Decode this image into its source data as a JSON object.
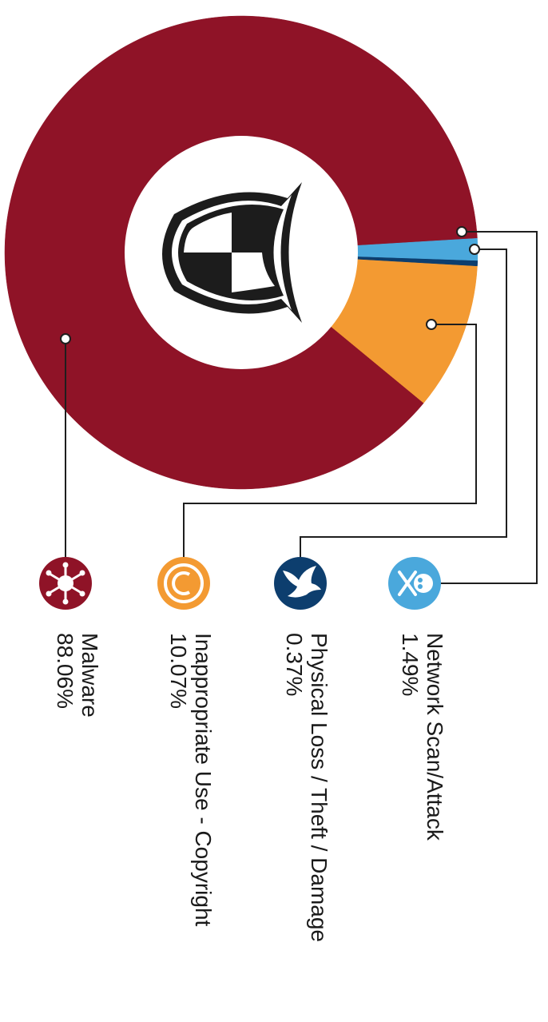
{
  "chart_data": {
    "type": "pie",
    "variant": "donut",
    "title": "",
    "orientation": "rotated 90 degrees clockwise",
    "slices": [
      {
        "label": "Malware",
        "value": 88.06,
        "display": "88.06%",
        "color": "#8f1327",
        "icon": "virus-icon"
      },
      {
        "label": "Inappropriate Use - Copyright",
        "value": 10.07,
        "display": "10.07%",
        "color": "#f39a32",
        "icon": "copyright-icon"
      },
      {
        "label": "Physical Loss / Theft / Damage",
        "value": 0.37,
        "display": "0.37%",
        "color": "#0d3e6e",
        "icon": "bird-icon"
      },
      {
        "label": "Network Scan/Attack",
        "value": 1.49,
        "display": "1.49%",
        "color": "#4aa8dc",
        "icon": "skull-crossbones-icon"
      }
    ]
  },
  "center_icon": "shield-icon"
}
